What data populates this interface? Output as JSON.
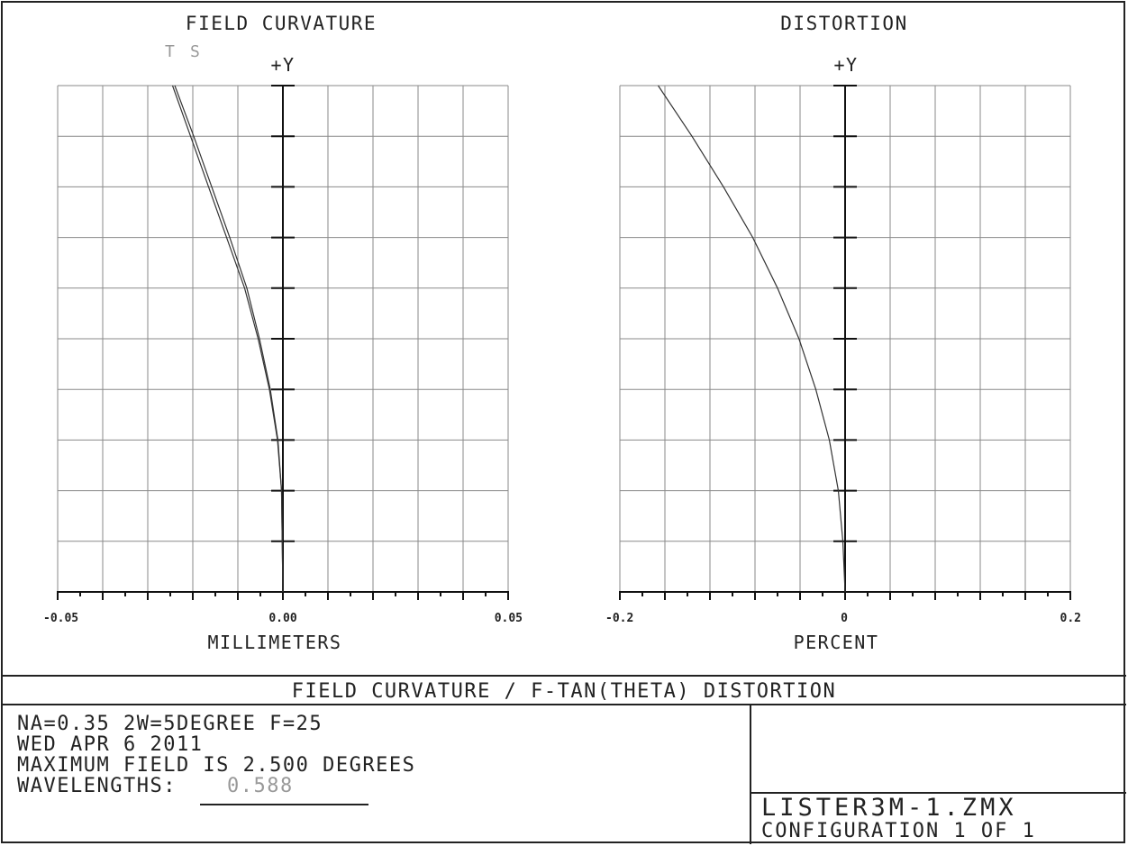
{
  "chart_data": [
    {
      "type": "line",
      "title": "FIELD CURVATURE",
      "legend": [
        "T",
        "S"
      ],
      "y_axis_label": "+Y",
      "xlabel": "MILLIMETERS",
      "xlim": [
        -0.05,
        0.05
      ],
      "ylim": [
        0,
        1
      ],
      "x_tick_labels": [
        "-0.05",
        "0.00",
        "0.05"
      ],
      "grid": true,
      "series": [
        {
          "name": "T",
          "x": [
            -0.0245,
            -0.0205,
            -0.0165,
            -0.0125,
            -0.0085,
            -0.0055,
            -0.003,
            -0.0012,
            -0.0003,
            0.0
          ],
          "y": [
            1.0,
            0.9,
            0.8,
            0.7,
            0.6,
            0.5,
            0.4,
            0.3,
            0.2,
            0.0
          ]
        },
        {
          "name": "S",
          "x": [
            -0.024,
            -0.0198,
            -0.0158,
            -0.0118,
            -0.008,
            -0.0052,
            -0.0028,
            -0.0011,
            -0.0003,
            0.0
          ],
          "y": [
            1.0,
            0.9,
            0.8,
            0.7,
            0.6,
            0.5,
            0.4,
            0.3,
            0.2,
            0.0
          ]
        }
      ]
    },
    {
      "type": "line",
      "title": "DISTORTION",
      "y_axis_label": "+Y",
      "xlabel": "PERCENT",
      "xlim": [
        -0.2,
        0.2
      ],
      "ylim": [
        0,
        1
      ],
      "x_tick_labels": [
        "-0.2",
        "0",
        "0.2"
      ],
      "grid": true,
      "series": [
        {
          "x": [
            -0.166,
            -0.136,
            -0.108,
            -0.082,
            -0.06,
            -0.041,
            -0.026,
            -0.014,
            -0.006,
            -0.002,
            0.0
          ],
          "y": [
            1.0,
            0.9,
            0.8,
            0.7,
            0.6,
            0.5,
            0.4,
            0.3,
            0.2,
            0.1,
            0.0
          ]
        }
      ]
    }
  ],
  "footer": {
    "banner": "FIELD CURVATURE / F-TAN(THETA) DISTORTION",
    "lines": [
      "NA=0.35 2W=5DEGREE F=25",
      "WED APR 6 2011",
      "MAXIMUM FIELD IS 2.500 DEGREES"
    ],
    "wavelengths_label": "WAVELENGTHS:",
    "wavelength_value": "0.588",
    "file_name": "LISTER3M-1.ZMX",
    "configuration": "CONFIGURATION 1 OF 1"
  },
  "colors": {
    "line": "#333333",
    "grid": "#8a8a8a",
    "axis": "#111111",
    "faint_text": "#999999"
  }
}
